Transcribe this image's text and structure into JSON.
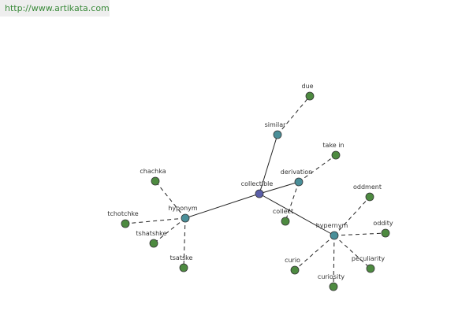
{
  "header": {
    "url": "http://www.artikata.com"
  },
  "nodes": [
    {
      "label": "collectible"
    },
    {
      "label": "similar"
    },
    {
      "label": "due"
    },
    {
      "label": "derivation"
    },
    {
      "label": "take in"
    },
    {
      "label": "collect"
    },
    {
      "label": "hypernym"
    },
    {
      "label": "oddment"
    },
    {
      "label": "oddity"
    },
    {
      "label": "peculiarity"
    },
    {
      "label": "curiosity"
    },
    {
      "label": "curio"
    },
    {
      "label": "hyponym"
    },
    {
      "label": "chachka"
    },
    {
      "label": "tchotchke"
    },
    {
      "label": "tshatshke"
    },
    {
      "label": "tsatske"
    }
  ]
}
